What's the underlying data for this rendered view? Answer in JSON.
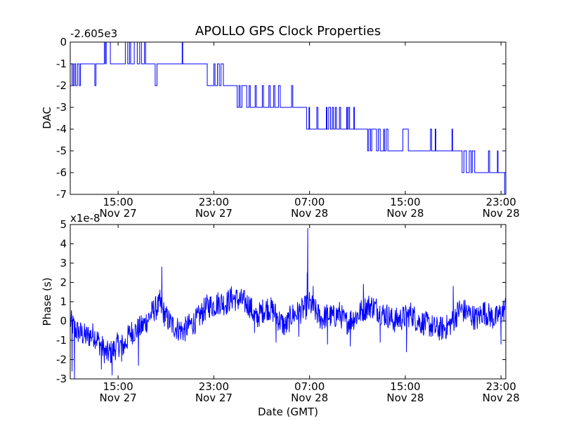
{
  "chart_data": [
    {
      "type": "line",
      "title": "APOLLO GPS Clock Properties",
      "offset_label": "-2.605e3",
      "ylabel": "DAC",
      "xlabel": "",
      "xlim": [
        11.0,
        47.4
      ],
      "ylim": [
        -7,
        0
      ],
      "yticks": [
        0,
        -1,
        -2,
        -3,
        -4,
        -5,
        -6,
        -7
      ],
      "color": "#0000ff",
      "xticks": [
        {
          "t": 15,
          "time": "15:00",
          "date": "Nov 27"
        },
        {
          "t": 23,
          "time": "23:00",
          "date": "Nov 27"
        },
        {
          "t": 31,
          "time": "07:00",
          "date": "Nov 28"
        },
        {
          "t": 39,
          "time": "15:00",
          "date": "Nov 28"
        },
        {
          "t": 47,
          "time": "23:00",
          "date": "Nov 28"
        }
      ],
      "series": [
        {
          "name": "DAC",
          "steps": [
            [
              11.0,
              -2
            ],
            [
              11.15,
              -1
            ],
            [
              11.25,
              -2
            ],
            [
              11.35,
              -1
            ],
            [
              11.45,
              -2
            ],
            [
              11.6,
              -1
            ],
            [
              11.75,
              -2
            ],
            [
              11.85,
              -1
            ],
            [
              13.0,
              -1
            ],
            [
              13.05,
              -2
            ],
            [
              13.15,
              -1
            ],
            [
              13.8,
              -1
            ],
            [
              13.85,
              0
            ],
            [
              13.95,
              -1
            ],
            [
              14.0,
              0
            ],
            [
              14.3,
              0
            ],
            [
              14.35,
              -1
            ],
            [
              15.5,
              -1
            ],
            [
              15.6,
              0
            ],
            [
              15.8,
              -1
            ],
            [
              15.95,
              0
            ],
            [
              16.05,
              -1
            ],
            [
              16.3,
              -1
            ],
            [
              16.35,
              0
            ],
            [
              16.6,
              -1
            ],
            [
              16.8,
              0
            ],
            [
              16.95,
              -1
            ],
            [
              17.2,
              0
            ],
            [
              17.3,
              -1
            ],
            [
              18.0,
              -1
            ],
            [
              18.1,
              -2
            ],
            [
              18.25,
              -1
            ],
            [
              20.3,
              -1
            ],
            [
              20.35,
              0
            ],
            [
              20.4,
              -1
            ],
            [
              22.4,
              -1
            ],
            [
              22.45,
              -2
            ],
            [
              22.9,
              -2
            ],
            [
              23.0,
              -1
            ],
            [
              23.1,
              -2
            ],
            [
              23.3,
              -1
            ],
            [
              23.45,
              -2
            ],
            [
              23.6,
              -1
            ],
            [
              23.8,
              -2
            ],
            [
              24.9,
              -2
            ],
            [
              24.95,
              -3
            ],
            [
              25.1,
              -2
            ],
            [
              25.2,
              -3
            ],
            [
              25.35,
              -2
            ],
            [
              25.65,
              -2
            ],
            [
              25.75,
              -3
            ],
            [
              25.95,
              -2
            ],
            [
              26.05,
              -3
            ],
            [
              26.35,
              -3
            ],
            [
              26.45,
              -2
            ],
            [
              26.55,
              -3
            ],
            [
              27.0,
              -3
            ],
            [
              27.05,
              -2
            ],
            [
              27.15,
              -3
            ],
            [
              27.6,
              -2
            ],
            [
              27.7,
              -3
            ],
            [
              28.0,
              -2
            ],
            [
              28.1,
              -3
            ],
            [
              28.4,
              -2
            ],
            [
              28.55,
              -3
            ],
            [
              29.4,
              -3
            ],
            [
              29.5,
              -2
            ],
            [
              29.6,
              -3
            ],
            [
              30.7,
              -3
            ],
            [
              30.75,
              -4
            ],
            [
              30.95,
              -3
            ],
            [
              31.0,
              -4
            ],
            [
              31.6,
              -3
            ],
            [
              31.7,
              -4
            ],
            [
              32.4,
              -3
            ],
            [
              32.45,
              -4
            ],
            [
              32.6,
              -3
            ],
            [
              32.75,
              -4
            ],
            [
              32.9,
              -3
            ],
            [
              33.0,
              -4
            ],
            [
              33.15,
              -3
            ],
            [
              33.25,
              -4
            ],
            [
              33.5,
              -3
            ],
            [
              33.6,
              -4
            ],
            [
              34.1,
              -3
            ],
            [
              34.15,
              -4
            ],
            [
              34.25,
              -3
            ],
            [
              34.35,
              -4
            ],
            [
              34.7,
              -3
            ],
            [
              34.75,
              -4
            ],
            [
              35.8,
              -4
            ],
            [
              35.85,
              -5
            ],
            [
              35.95,
              -4
            ],
            [
              36.1,
              -5
            ],
            [
              36.2,
              -4
            ],
            [
              36.6,
              -5
            ],
            [
              36.75,
              -4
            ],
            [
              36.9,
              -5
            ],
            [
              37.2,
              -4
            ],
            [
              37.25,
              -5
            ],
            [
              37.4,
              -4
            ],
            [
              37.55,
              -5
            ],
            [
              38.8,
              -4
            ],
            [
              39.25,
              -5
            ],
            [
              41.1,
              -4
            ],
            [
              41.2,
              -5
            ],
            [
              41.5,
              -4
            ],
            [
              41.55,
              -5
            ],
            [
              42.9,
              -4
            ],
            [
              42.95,
              -5
            ],
            [
              43.7,
              -5
            ],
            [
              43.75,
              -6
            ],
            [
              43.9,
              -5
            ],
            [
              44.1,
              -6
            ],
            [
              44.35,
              -5
            ],
            [
              44.5,
              -6
            ],
            [
              44.6,
              -5
            ],
            [
              44.8,
              -6
            ],
            [
              45.9,
              -6
            ],
            [
              45.95,
              -5
            ],
            [
              46.05,
              -6
            ],
            [
              46.65,
              -6
            ],
            [
              46.7,
              -5
            ],
            [
              46.75,
              -6
            ],
            [
              47.25,
              -6
            ],
            [
              47.3,
              -7
            ],
            [
              47.4,
              -7
            ]
          ]
        }
      ]
    },
    {
      "type": "line",
      "title": "",
      "offset_label": "x1e-8",
      "ylabel": "Phase (s)",
      "xlabel": "Date (GMT)",
      "xlim": [
        11.0,
        47.4
      ],
      "ylim": [
        -3,
        5
      ],
      "yticks": [
        5,
        4,
        3,
        2,
        1,
        0,
        -1,
        -2,
        -3
      ],
      "color": "#0000ff",
      "xticks": [
        {
          "t": 15,
          "time": "15:00",
          "date": "Nov 27"
        },
        {
          "t": 23,
          "time": "23:00",
          "date": "Nov 27"
        },
        {
          "t": 31,
          "time": "07:00",
          "date": "Nov 28"
        },
        {
          "t": 39,
          "time": "15:00",
          "date": "Nov 28"
        },
        {
          "t": 47,
          "time": "23:00",
          "date": "Nov 28"
        }
      ],
      "series": [
        {
          "name": "Phase",
          "trend": [
            [
              11.0,
              0.0
            ],
            [
              11.5,
              -0.5
            ],
            [
              12.3,
              -0.8
            ],
            [
              13.0,
              -0.7
            ],
            [
              13.5,
              -1.2
            ],
            [
              14.0,
              -1.7
            ],
            [
              14.5,
              -1.6
            ],
            [
              15.0,
              -1.2
            ],
            [
              15.5,
              -1.3
            ],
            [
              16.0,
              -0.6
            ],
            [
              16.5,
              -0.5
            ],
            [
              17.0,
              -0.3
            ],
            [
              17.5,
              0.1
            ],
            [
              18.0,
              0.6
            ],
            [
              18.5,
              0.8
            ],
            [
              19.0,
              0.2
            ],
            [
              19.5,
              -0.2
            ],
            [
              20.0,
              -0.4
            ],
            [
              20.5,
              -0.5
            ],
            [
              21.0,
              -0.2
            ],
            [
              21.5,
              0.0
            ],
            [
              22.0,
              0.4
            ],
            [
              22.5,
              0.8
            ],
            [
              23.0,
              0.8
            ],
            [
              23.5,
              1.0
            ],
            [
              24.0,
              0.9
            ],
            [
              24.5,
              1.2
            ],
            [
              25.0,
              1.1
            ],
            [
              25.5,
              1.0
            ],
            [
              26.0,
              0.8
            ],
            [
              26.5,
              0.1
            ],
            [
              27.0,
              0.5
            ],
            [
              27.5,
              0.7
            ],
            [
              28.0,
              0.5
            ],
            [
              28.5,
              0.0
            ],
            [
              29.0,
              -0.3
            ],
            [
              29.5,
              0.3
            ],
            [
              30.0,
              0.4
            ],
            [
              30.5,
              0.6
            ],
            [
              31.0,
              0.9
            ],
            [
              31.5,
              0.5
            ],
            [
              32.0,
              0.1
            ],
            [
              32.5,
              0.3
            ],
            [
              33.0,
              0.2
            ],
            [
              33.5,
              0.4
            ],
            [
              34.0,
              -0.1
            ],
            [
              34.5,
              0.1
            ],
            [
              35.0,
              0.3
            ],
            [
              35.5,
              0.6
            ],
            [
              36.0,
              0.8
            ],
            [
              36.5,
              0.7
            ],
            [
              37.0,
              0.4
            ],
            [
              37.5,
              0.3
            ],
            [
              38.0,
              0.0
            ],
            [
              38.5,
              0.1
            ],
            [
              39.0,
              0.2
            ],
            [
              39.5,
              0.4
            ],
            [
              40.0,
              0.0
            ],
            [
              40.5,
              -0.1
            ],
            [
              41.0,
              -0.2
            ],
            [
              41.5,
              -0.4
            ],
            [
              42.0,
              -0.4
            ],
            [
              42.5,
              -0.3
            ],
            [
              43.0,
              0.0
            ],
            [
              43.5,
              0.6
            ],
            [
              44.0,
              0.5
            ],
            [
              44.5,
              0.3
            ],
            [
              45.0,
              0.1
            ],
            [
              45.5,
              0.5
            ],
            [
              46.0,
              0.3
            ],
            [
              46.5,
              0.1
            ],
            [
              47.0,
              0.4
            ],
            [
              47.4,
              0.7
            ]
          ],
          "spikes": [
            [
              11.15,
              -2.6
            ],
            [
              11.35,
              -3.0
            ],
            [
              13.6,
              -2.5
            ],
            [
              14.5,
              -2.8
            ],
            [
              15.3,
              -2.1
            ],
            [
              16.7,
              -2.3
            ],
            [
              18.5,
              1.6
            ],
            [
              18.65,
              2.8
            ],
            [
              23.4,
              0.8
            ],
            [
              26.4,
              -0.6
            ],
            [
              28.2,
              -1.1
            ],
            [
              30.1,
              -0.8
            ],
            [
              30.8,
              2.5
            ],
            [
              30.85,
              4.8
            ],
            [
              31.3,
              1.8
            ],
            [
              32.5,
              -1.2
            ],
            [
              34.4,
              -1.3
            ],
            [
              35.5,
              1.9
            ],
            [
              36.9,
              -1.1
            ],
            [
              39.1,
              -1.6
            ],
            [
              43.0,
              1.8
            ],
            [
              47.0,
              -1.2
            ],
            [
              47.4,
              1.2
            ]
          ]
        }
      ]
    }
  ]
}
